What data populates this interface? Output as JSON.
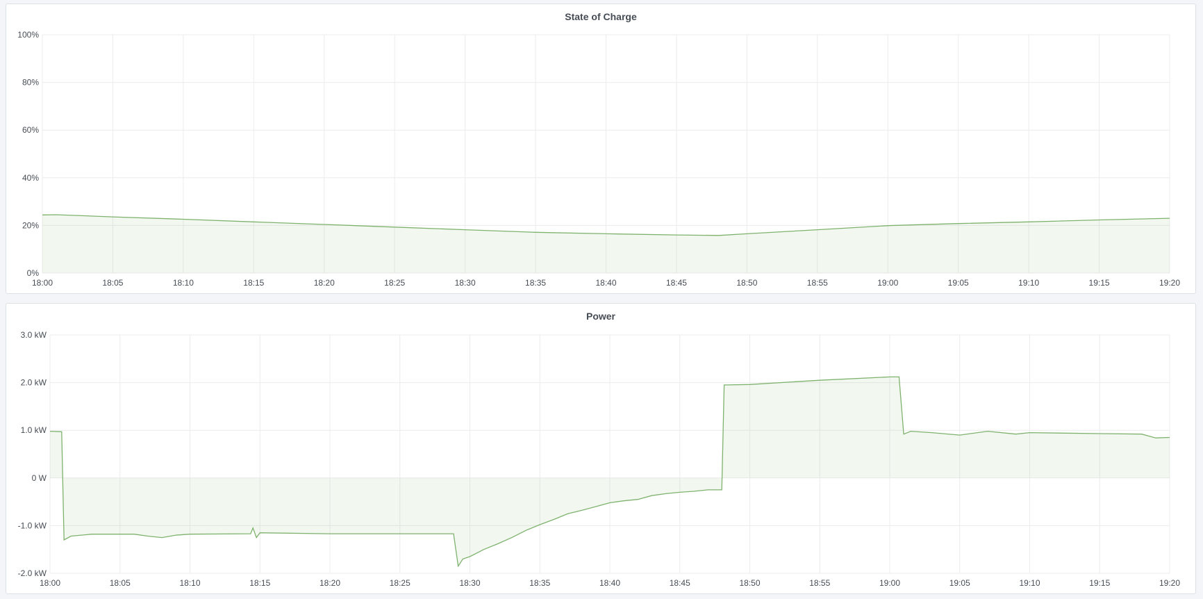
{
  "chart_data": [
    {
      "type": "area",
      "title": "State of Charge",
      "y_ticks": [
        "0%",
        "20%",
        "40%",
        "60%",
        "80%",
        "100%"
      ],
      "ylim": [
        0,
        100
      ],
      "y_unit": "%",
      "x_ticks": [
        "18:00",
        "18:05",
        "18:10",
        "18:15",
        "18:20",
        "18:25",
        "18:30",
        "18:35",
        "18:40",
        "18:45",
        "18:50",
        "18:55",
        "19:00",
        "19:05",
        "19:10",
        "19:15",
        "19:20"
      ],
      "xlim": [
        "18:00",
        "19:20"
      ],
      "grid": true,
      "color": "#7eb26d",
      "x": [
        "18:00",
        "18:01",
        "18:05",
        "18:10",
        "18:15",
        "18:20",
        "18:25",
        "18:30",
        "18:35",
        "18:40",
        "18:45",
        "18:48",
        "18:50",
        "18:55",
        "19:00",
        "19:05",
        "19:10",
        "19:15",
        "19:20"
      ],
      "values": [
        24.4,
        24.5,
        23.6,
        22.6,
        21.5,
        20.4,
        19.3,
        18.2,
        17.1,
        16.5,
        16.0,
        15.8,
        16.5,
        18.2,
        19.9,
        20.8,
        21.5,
        22.3,
        23.0
      ]
    },
    {
      "type": "area",
      "title": "Power",
      "y_ticks": [
        "-2.0 kW",
        "-1.0 kW",
        "0 W",
        "1.0 kW",
        "2.0 kW",
        "3.0 kW"
      ],
      "ylim": [
        -2,
        3
      ],
      "y_unit": "kW",
      "x_ticks": [
        "18:00",
        "18:05",
        "18:10",
        "18:15",
        "18:20",
        "18:25",
        "18:30",
        "18:35",
        "18:40",
        "18:45",
        "18:50",
        "18:55",
        "19:00",
        "19:05",
        "19:10",
        "19:15",
        "19:20"
      ],
      "xlim": [
        "18:00",
        "19:20"
      ],
      "grid": true,
      "color": "#7eb26d",
      "x": [
        "18:00:00",
        "18:00:50",
        "18:01:00",
        "18:01:30",
        "18:03:00",
        "18:06:00",
        "18:07:00",
        "18:08:00",
        "18:09:00",
        "18:10:00",
        "18:14:20",
        "18:14:30",
        "18:14:45",
        "18:15:00",
        "18:20:00",
        "18:25:00",
        "18:28:50",
        "18:29:10",
        "18:29:30",
        "18:30:00",
        "18:31:00",
        "18:32:00",
        "18:33:00",
        "18:34:00",
        "18:35:00",
        "18:36:00",
        "18:37:00",
        "18:38:00",
        "18:39:00",
        "18:40:00",
        "18:41:00",
        "18:42:00",
        "18:43:00",
        "18:44:00",
        "18:45:00",
        "18:46:00",
        "18:47:00",
        "18:48:00",
        "18:48:10",
        "18:50:00",
        "18:55:00",
        "19:00:00",
        "19:00:40",
        "19:01:00",
        "19:01:30",
        "19:03:00",
        "19:05:00",
        "19:07:00",
        "19:09:00",
        "19:10:00",
        "19:15:00",
        "19:18:00",
        "19:19:00",
        "19:20:00"
      ],
      "values": [
        0.98,
        0.97,
        -1.3,
        -1.22,
        -1.18,
        -1.18,
        -1.22,
        -1.25,
        -1.2,
        -1.18,
        -1.17,
        -1.05,
        -1.25,
        -1.15,
        -1.17,
        -1.17,
        -1.17,
        -1.85,
        -1.7,
        -1.65,
        -1.5,
        -1.38,
        -1.25,
        -1.1,
        -0.98,
        -0.87,
        -0.75,
        -0.68,
        -0.6,
        -0.52,
        -0.48,
        -0.45,
        -0.37,
        -0.33,
        -0.3,
        -0.28,
        -0.25,
        -0.25,
        1.95,
        1.96,
        2.05,
        2.12,
        2.12,
        0.92,
        0.98,
        0.95,
        0.9,
        0.98,
        0.92,
        0.95,
        0.93,
        0.92,
        0.84,
        0.85
      ]
    }
  ]
}
